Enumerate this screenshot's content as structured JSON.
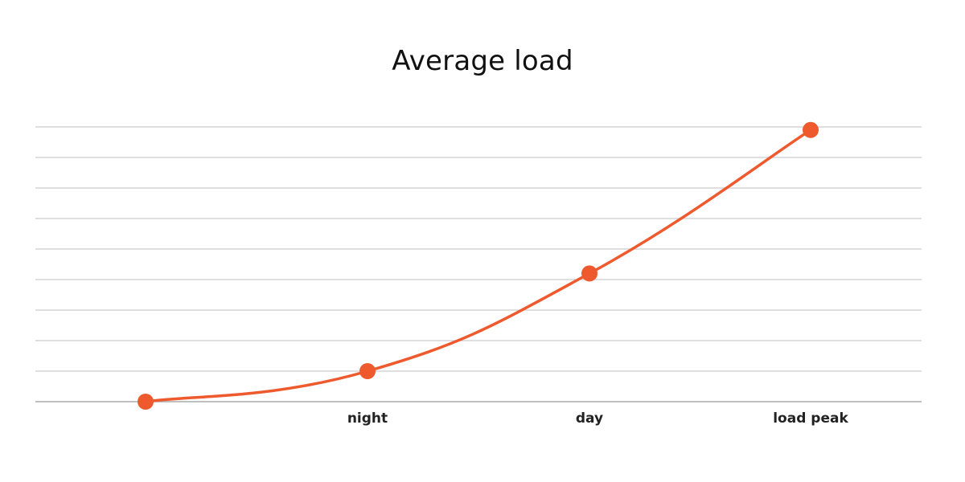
{
  "chart_data": {
    "type": "line",
    "title": "Average load",
    "xlabel": "",
    "ylabel": "",
    "categories": [
      "",
      "night",
      "day",
      "load peak"
    ],
    "series": [
      {
        "values": [
          0,
          1,
          4.2,
          8.9
        ]
      }
    ],
    "ylim": [
      0,
      9
    ],
    "grid": true,
    "y_ticks_shown": false,
    "smooth": true,
    "color": "#EE5A2E",
    "gridline_color": "#CCCCCC",
    "axis_color": "#AAAAAA"
  }
}
